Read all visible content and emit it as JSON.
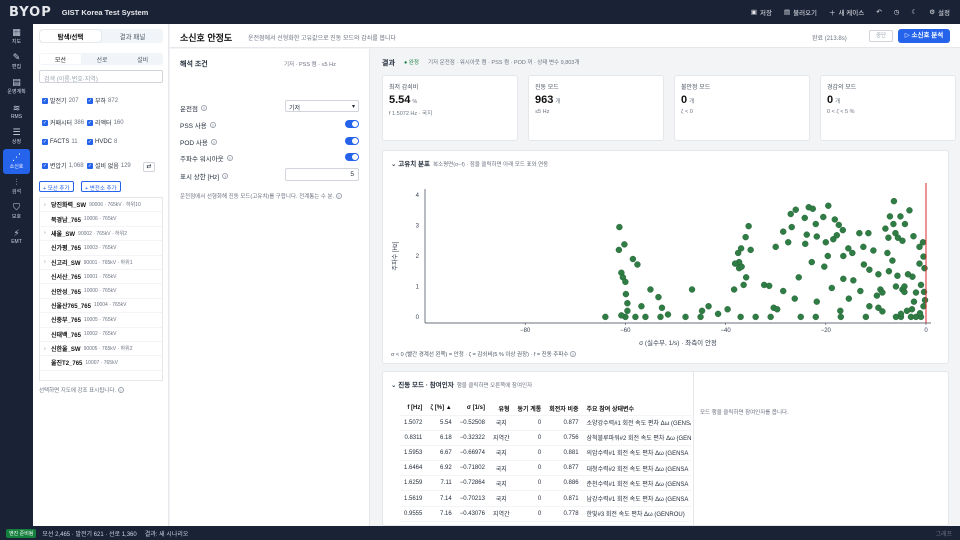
{
  "app": {
    "logo": "BYOP",
    "title": "GIST Korea Test System"
  },
  "topbar": {
    "save": "저장",
    "load": "불러오기",
    "new_case": "새 케이스",
    "settings": "설정"
  },
  "rail": [
    {
      "icon": "map-icon",
      "label": "지도"
    },
    {
      "icon": "edit-icon",
      "label": "편집"
    },
    {
      "icon": "plan-icon",
      "label": "운영계획"
    },
    {
      "icon": "rms-icon",
      "label": "RMS"
    },
    {
      "icon": "list-icon",
      "label": "상정"
    },
    {
      "icon": "ssa-icon",
      "label": "소신호"
    },
    {
      "icon": "sliders-icon",
      "label": "검석"
    },
    {
      "icon": "shield-icon",
      "label": "보호"
    },
    {
      "icon": "emt-icon",
      "label": "EMT"
    }
  ],
  "side": {
    "seg": [
      "탐색/선택",
      "결과 패널"
    ],
    "tabs": [
      "모선",
      "선로",
      "설비"
    ],
    "search_placeholder": "검색 (이름·번호·지역)",
    "filters": [
      {
        "label": "발전기",
        "count": "207"
      },
      {
        "label": "부하",
        "count": "872"
      },
      {
        "label": "커패시터",
        "count": "386"
      },
      {
        "label": "리액터",
        "count": "160"
      },
      {
        "label": "FACTS",
        "count": "11"
      },
      {
        "label": "HVDC",
        "count": "8"
      },
      {
        "label": "변압기",
        "count": "1,068"
      },
      {
        "label": "설비 없음",
        "count": "129"
      }
    ],
    "add_bus": "+ 모선 추가",
    "add_tx": "+ 변전소 추가",
    "buses": [
      {
        "arrow": "›",
        "name": "당진화력_SW",
        "meta": "90006 · 765kV · 하위10"
      },
      {
        "arrow": "",
        "name": "북경남_765",
        "meta": "10006 · 765kV"
      },
      {
        "arrow": "›",
        "name": "새울_SW",
        "meta": "90002 · 765kV · 하위2"
      },
      {
        "arrow": "",
        "name": "신가평_765",
        "meta": "10003 · 765kV"
      },
      {
        "arrow": "›",
        "name": "신고리_SW",
        "meta": "90001 · 765kV · 하위1"
      },
      {
        "arrow": "",
        "name": "신서산_765",
        "meta": "10001 · 765kV"
      },
      {
        "arrow": "",
        "name": "신안성_765",
        "meta": "10000 · 765kV"
      },
      {
        "arrow": "",
        "name": "신울산765_765",
        "meta": "10004 · 765kV"
      },
      {
        "arrow": "",
        "name": "신중부_765",
        "meta": "10005 · 765kV"
      },
      {
        "arrow": "",
        "name": "신태백_765",
        "meta": "10002 · 765kV"
      },
      {
        "arrow": "›",
        "name": "신한울_SW",
        "meta": "90005 · 765kV · 하위2"
      },
      {
        "arrow": "",
        "name": "울진T2_765",
        "meta": "10007 · 765kV"
      }
    ],
    "hint": "선택하면 지도에 강조 표시됩니다."
  },
  "status": {
    "badge": "엔진 준비됨",
    "text": "모선 2,465 · 발전기 621 · 선로 1,360",
    "result": "결과: 새 시나리오",
    "right": "그래프"
  },
  "header": {
    "title": "소신호 안정도",
    "desc": "운전점에서 선형화한 고유값으로 진동 모드와 감쇠를 봅니다",
    "done": "완료 (213.8s)",
    "stop": "중단",
    "run": "▷ 소신호 분석"
  },
  "cond": {
    "title": "해석 조건",
    "sub": "기저 · PSS 켬 · ≤5 Hz",
    "op_label": "운전점",
    "op_value": "기저",
    "pss_label": "PSS 사용",
    "pod_label": "POD 사용",
    "gov_label": "주파수 워시아웃",
    "fmax_label": "표시 상한 [Hz]",
    "fmax_value": "5",
    "note": "운전점에서 선형화해 진동 모드(고유치)를 구합니다. 전계통는 수 분."
  },
  "result": {
    "title": "결과",
    "ok": "● 완정",
    "meta": "기저 운전점 · 워시아웃 켬 · PSS 켬 · POD 꺼 · 상태 변수 9,803개"
  },
  "cards": [
    {
      "label": "최저 감쇠비",
      "value": "5.54",
      "unit": "%",
      "sub": "f 1.5072 Hz · 국지"
    },
    {
      "label": "진동 모드",
      "value": "963",
      "unit": "개",
      "sub": "≤5 Hz"
    },
    {
      "label": "불안정 모드",
      "value": "0",
      "unit": "개",
      "sub": "ζ < 0"
    },
    {
      "label": "경감의 모드",
      "value": "0",
      "unit": "개",
      "sub": "0 < ζ < 5 %"
    }
  ],
  "eig": {
    "title": "고유치 분포",
    "desc": "복소평면(σ–f) · 점을 클릭하면 아래 모드 표와 연동",
    "note": "σ < 0 (빨간 경계선 왼쪽) = 안정 · ζ = 감쇠비(5 % 이상 권장) · f = 진동 주파수"
  },
  "chart_data": {
    "type": "scatter",
    "xlabel": "σ (실수부, 1/s) · 좌측이 안정",
    "ylabel": "주파수 [Hz]",
    "xlim": [
      -100,
      1
    ],
    "ylim": [
      -0.2,
      4.2
    ],
    "xticks": [
      "−80",
      "−60",
      "−40",
      "−20",
      "0"
    ],
    "yticks": [
      "0",
      "1",
      "2",
      "3",
      "4"
    ],
    "points": [
      [
        -64,
        0
      ],
      [
        -60,
        0
      ],
      [
        -58,
        0
      ],
      [
        -56,
        0
      ],
      [
        -53,
        0
      ],
      [
        -48,
        0
      ],
      [
        -45,
        0
      ],
      [
        -37,
        0
      ],
      [
        -34,
        0
      ],
      [
        -31,
        0
      ],
      [
        -25,
        0
      ],
      [
        -22,
        0
      ],
      [
        -17,
        0
      ],
      [
        -12,
        0
      ],
      [
        -6,
        0
      ],
      [
        -5,
        0
      ],
      [
        -3,
        0
      ],
      [
        -2,
        0
      ],
      [
        -1,
        0
      ],
      [
        -60.8,
        1.45
      ],
      [
        -60.5,
        1.3
      ],
      [
        -60,
        1.15
      ],
      [
        -59.9,
        0.75
      ],
      [
        -59.6,
        0.45
      ],
      [
        -59.6,
        0.2
      ],
      [
        -60.8,
        0.05
      ],
      [
        -61.2,
        2.95
      ],
      [
        -61.3,
        2.2
      ],
      [
        -60.2,
        2.38
      ],
      [
        -58.5,
        1.9
      ],
      [
        -57.6,
        1.72
      ],
      [
        -55,
        0.9
      ],
      [
        -56.8,
        0.35
      ],
      [
        -53.4,
        0.65
      ],
      [
        -52.7,
        0.3
      ],
      [
        -51.5,
        0.08
      ],
      [
        -46.7,
        0.9
      ],
      [
        -44.7,
        0.2
      ],
      [
        -43.4,
        0.35
      ],
      [
        -41.5,
        0.1
      ],
      [
        -39.6,
        0.25
      ],
      [
        -38.3,
        0.9
      ],
      [
        -36.4,
        1.05
      ],
      [
        -35.9,
        1.3
      ],
      [
        -32.3,
        1.05
      ],
      [
        -31.3,
        1.02
      ],
      [
        -30.4,
        0.3
      ],
      [
        -29.7,
        0.25
      ],
      [
        -37.3,
        1.6
      ],
      [
        -36.8,
        1.65
      ],
      [
        -37.3,
        1.8
      ],
      [
        -36.9,
        2.25
      ],
      [
        -37.5,
        2.1
      ],
      [
        -38.1,
        1.75
      ],
      [
        -36,
        2.62
      ],
      [
        -35.4,
        2.98
      ],
      [
        -35,
        2.2
      ],
      [
        -30,
        2.3
      ],
      [
        -28.5,
        2.8
      ],
      [
        -27.5,
        2.45
      ],
      [
        -27,
        3.38
      ],
      [
        -26.8,
        2.95
      ],
      [
        -26,
        3.52
      ],
      [
        -24.2,
        3.25
      ],
      [
        -23.4,
        3.6
      ],
      [
        -23.8,
        2.7
      ],
      [
        -22.6,
        3.55
      ],
      [
        -22,
        3.05
      ],
      [
        -21.8,
        2.64
      ],
      [
        -20.5,
        3.28
      ],
      [
        -20,
        2.45
      ],
      [
        -19.5,
        3.65
      ],
      [
        -18.5,
        2.55
      ],
      [
        -18.2,
        3.2
      ],
      [
        -17.8,
        2.68
      ],
      [
        -16.5,
        2.0
      ],
      [
        -16.6,
        2.85
      ],
      [
        -17.4,
        3.02
      ],
      [
        -15.5,
        2.25
      ],
      [
        -14.7,
        2.1
      ],
      [
        -13.3,
        2.75
      ],
      [
        -12.5,
        2.3
      ],
      [
        -12.4,
        1.72
      ],
      [
        -11.5,
        2.75
      ],
      [
        -11.3,
        1.55
      ],
      [
        -10.5,
        2.18
      ],
      [
        -9.5,
        1.4
      ],
      [
        -9.8,
        0.7
      ],
      [
        -9.1,
        0.9
      ],
      [
        -9.5,
        0.3
      ],
      [
        -8.7,
        0.18
      ],
      [
        -8.7,
        0.8
      ],
      [
        -6,
        1.0
      ],
      [
        -5,
        0.1
      ],
      [
        -4.7,
        0.9
      ],
      [
        -4.3,
        0.82
      ],
      [
        -3.8,
        0.2
      ],
      [
        -2.7,
        1.32
      ],
      [
        -2.4,
        0.5
      ],
      [
        -2.8,
        0.25
      ],
      [
        -1.3,
        1.75
      ],
      [
        -1.2,
        0.12
      ],
      [
        -0.5,
        0.35
      ],
      [
        -0.4,
        0.82
      ],
      [
        -0.2,
        0.55
      ],
      [
        -0.5,
        1.98
      ],
      [
        -0.3,
        1.6
      ],
      [
        -1,
        1.05
      ],
      [
        -5.1,
        3.3
      ],
      [
        -4.2,
        3.05
      ],
      [
        -5.6,
        2.6
      ],
      [
        -4.7,
        2.5
      ],
      [
        -2.5,
        2.65
      ],
      [
        -1.3,
        2.3
      ],
      [
        -0.6,
        2.45
      ],
      [
        -3.3,
        3.5
      ],
      [
        -6.5,
        3.05
      ],
      [
        -6.1,
        2.75
      ],
      [
        -7.2,
        3.3
      ],
      [
        -8.1,
        2.9
      ],
      [
        -7.5,
        2.6
      ],
      [
        -6.4,
        3.8
      ],
      [
        -7.7,
        2.1
      ],
      [
        -6.7,
        1.85
      ],
      [
        -7.4,
        1.5
      ],
      [
        -4.3,
        1.0
      ],
      [
        -5.7,
        1.35
      ],
      [
        -3.6,
        1.4
      ],
      [
        -2,
        0.8
      ],
      [
        -24.1,
        2.4
      ],
      [
        -19.6,
        2.0
      ],
      [
        -20.3,
        1.65
      ],
      [
        -22.8,
        1.8
      ],
      [
        -25.4,
        1.3
      ],
      [
        -28.5,
        0.85
      ],
      [
        -13.1,
        0.85
      ],
      [
        -11.3,
        0.35
      ],
      [
        -15.4,
        0.6
      ],
      [
        -16.5,
        1.25
      ],
      [
        -17.1,
        0.2
      ],
      [
        -14.5,
        1.2
      ],
      [
        -18.8,
        0.95
      ],
      [
        -21.8,
        0.5
      ],
      [
        -26.2,
        0.6
      ]
    ]
  },
  "modes": {
    "title": "진동 모드 · 참여인자",
    "desc": "행을 클릭하면 오른쪽에 참여인자",
    "detail_hint": "모드 행을 클릭하면 참여인자를 봅니다.",
    "cols": [
      "f [Hz]",
      "ζ [%] ▲",
      "σ [1/s]",
      "유형",
      "동기 계통",
      "회전자 비중",
      "주요 참여 상태변수"
    ],
    "rows": [
      [
        "1.5072",
        "5.54",
        "−0.52508",
        "국지",
        "0",
        "0.877",
        "소양강수력#1 회전 속도 편차 Δω (GENSA"
      ],
      [
        "0.8311",
        "6.18",
        "−0.32322",
        "지역간",
        "0",
        "0.756",
        "삼척블루파워#2 회전 속도 편차 Δω (GEN"
      ],
      [
        "1.5953",
        "6.67",
        "−0.66974",
        "국지",
        "0",
        "0.881",
        "의암수력#1 회전 속도 편차 Δω (GENSA"
      ],
      [
        "1.6464",
        "6.92",
        "−0.71802",
        "국지",
        "0",
        "0.877",
        "대청수력#2 회전 속도 편차 Δω (GENSA"
      ],
      [
        "1.6259",
        "7.11",
        "−0.72864",
        "국지",
        "0",
        "0.886",
        "춘천수력#1 회전 속도 편차 Δω (GENSA"
      ],
      [
        "1.5619",
        "7.14",
        "−0.70213",
        "국지",
        "0",
        "0.871",
        "남강수력#1 회전 속도 편차 Δω (GENSA"
      ],
      [
        "0.9555",
        "7.16",
        "−0.43076",
        "지역간",
        "0",
        "0.778",
        "한빛#3 회전 속도 편차 Δω (GENROU)"
      ],
      [
        "1.6422",
        "7.24",
        "−0.74874",
        "국지",
        "0",
        "0.889",
        "춘천수력#2 회전 속도 편차 Δω (GENSA"
      ],
      [
        "1.6604",
        "7.28",
        "−0.76106",
        "국지",
        "0",
        "0.878",
        "대청수력#1 회전 속도 편차 Δω (GENSA"
      ]
    ]
  }
}
